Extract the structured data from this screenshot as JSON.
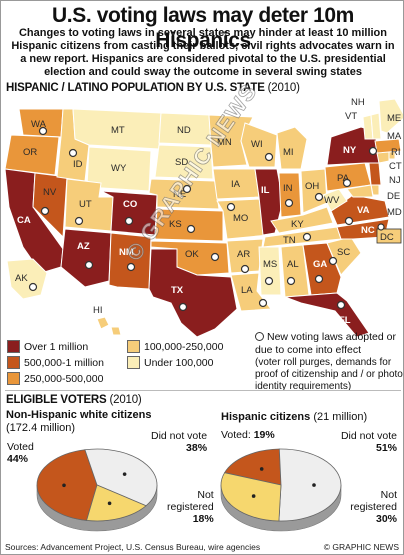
{
  "header": {
    "title": "U.S. voting laws may deter 10m Hispanics",
    "intro": "Changes to voting laws in several states may hinder at least 10 million Hispanic citizens from casting their ballots, civil rights advocates warn in a new report. Hispanics are considered pivotal to the U.S. presidential election and could sway the outcome in several swing states"
  },
  "map_section": {
    "title": "HISPANIC / LATINO POPULATION BY U.S. STATE",
    "year": "(2010)",
    "states": {
      "WA": "WA",
      "OR": "OR",
      "CA": "CA",
      "NV": "NV",
      "ID": "ID",
      "MT": "MT",
      "WY": "WY",
      "UT": "UT",
      "AZ": "AZ",
      "CO": "CO",
      "NM": "NM",
      "ND": "ND",
      "SD": "SD",
      "NE": "NE",
      "KS": "KS",
      "OK": "OK",
      "TX": "TX",
      "MN": "MN",
      "IA": "IA",
      "MO": "MO",
      "AR": "AR",
      "LA": "LA",
      "WI": "WI",
      "IL": "IL",
      "MI": "MI",
      "IN": "IN",
      "OH": "OH",
      "KY": "KY",
      "TN": "TN",
      "MS": "MS",
      "AL": "AL",
      "GA": "GA",
      "FL": "FL",
      "SC": "SC",
      "NC": "NC",
      "VA": "VA",
      "WV": "WV",
      "PA": "PA",
      "NY": "NY",
      "VT": "VT",
      "NH": "NH",
      "ME": "ME",
      "MA": "MA",
      "RI": "RI",
      "CT": "CT",
      "NJ": "NJ",
      "DE": "DE",
      "MD": "MD",
      "DC": "DC",
      "AK": "AK",
      "HI": "HI"
    }
  },
  "legend": {
    "items": [
      {
        "label": "Over 1 million",
        "color": "#8a1e1e"
      },
      {
        "label": "500,000-1 million",
        "color": "#c4561c"
      },
      {
        "label": "250,000-500,000",
        "color": "#e9963a"
      },
      {
        "label": "100,000-250,000",
        "color": "#f6cd7a"
      },
      {
        "label": "Under 100,000",
        "color": "#fbeeb8"
      }
    ],
    "note_lead": "New voting laws adopted or due to come into effect",
    "note_detail": "(voter roll purges, demands for proof of citizenship and / or photo identity requirements)"
  },
  "voters": {
    "title": "ELIGIBLE VOTERS",
    "year": "(2010)",
    "non_hispanic": {
      "title": "Non-Hispanic white citizens",
      "subtitle": "(172.4 million)",
      "voted_label": "Voted",
      "voted_value": "44%",
      "did_not_vote_label": "Did not vote",
      "did_not_vote_value": "38%",
      "not_registered_label_1": "Not",
      "not_registered_label_2": "registered",
      "not_registered_value": "18%"
    },
    "hispanic": {
      "title": "Hispanic citizens",
      "subtitle": "(21 million)",
      "voted_label": "Voted:",
      "voted_value": "19%",
      "did_not_vote_label": "Did not vote",
      "did_not_vote_value": "51%",
      "not_registered_label_1": "Not",
      "not_registered_label_2": "registered",
      "not_registered_value": "30%"
    }
  },
  "chart_data": [
    {
      "type": "pie",
      "title": "Non-Hispanic white citizens",
      "subtitle": "(172.4 million)",
      "slices": [
        {
          "label": "Voted",
          "value": 44,
          "color": "#c4561c"
        },
        {
          "label": "Did not vote",
          "value": 38,
          "color": "#eeeeee"
        },
        {
          "label": "Not registered",
          "value": 18,
          "color": "#f6d76e"
        }
      ]
    },
    {
      "type": "pie",
      "title": "Hispanic citizens",
      "subtitle": "(21 million)",
      "slices": [
        {
          "label": "Voted",
          "value": 19,
          "color": "#c4561c"
        },
        {
          "label": "Did not vote",
          "value": 51,
          "color": "#eeeeee"
        },
        {
          "label": "Not registered",
          "value": 30,
          "color": "#f6d76e"
        }
      ]
    }
  ],
  "footer": {
    "source": "Sources: Advancement Project, U.S. Census Bureau, wire agencies",
    "credit": "© GRAPHIC NEWS"
  },
  "watermark": "© GRAPHIC NEWS"
}
